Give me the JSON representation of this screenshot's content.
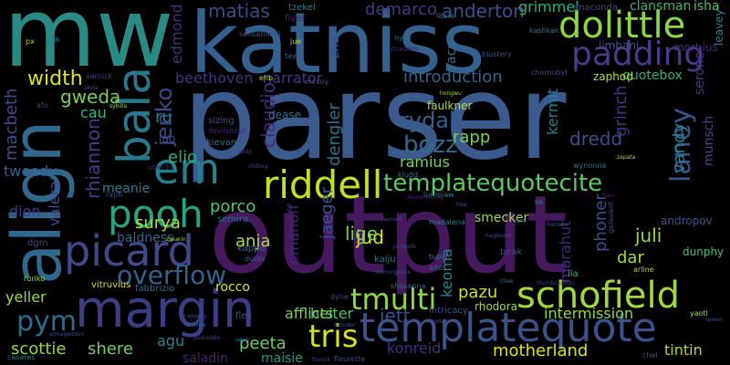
{
  "word_cloud": {
    "words": [
      {
        "text": "parser",
        "color": "#3b5a8e"
      },
      {
        "text": "output",
        "color": "#46185e"
      },
      {
        "text": "mw",
        "color": "#2a8a86"
      },
      {
        "text": "katniss",
        "color": "#34618d"
      },
      {
        "text": "align",
        "color": "#31688e"
      },
      {
        "text": "margin",
        "color": "#3b3e83"
      },
      {
        "text": "templatequote",
        "color": "#3a538b"
      },
      {
        "text": "picard",
        "color": "#3f4a8a"
      },
      {
        "text": "pooh",
        "color": "#29a283"
      },
      {
        "text": "schofield",
        "color": "#9fda3a"
      },
      {
        "text": "riddell",
        "color": "#c1df24"
      },
      {
        "text": "dolittle",
        "color": "#8bd546"
      },
      {
        "text": "padding",
        "color": "#4a3a88"
      },
      {
        "text": "em",
        "color": "#26818e"
      },
      {
        "text": "bala",
        "color": "#29798e"
      },
      {
        "text": "templatequotecite",
        "color": "#5cc863"
      },
      {
        "text": "overflow",
        "color": "#33628d"
      },
      {
        "text": "tmulti",
        "color": "#8fd744"
      },
      {
        "text": "tris",
        "color": "#d2e21b"
      },
      {
        "text": "pym",
        "color": "#2f6c8e"
      },
      {
        "text": "laney",
        "color": "#3a548c"
      },
      {
        "text": "bozz",
        "color": "#2f6b8e"
      },
      {
        "text": "rydal",
        "color": "#355f8d"
      },
      {
        "text": "introduction",
        "color": "#33638d"
      },
      {
        "text": "jenko",
        "color": "#3f4888"
      },
      {
        "text": "beethoven",
        "color": "#46337e"
      },
      {
        "text": "narrator",
        "color": "#43377f"
      },
      {
        "text": "anderton",
        "color": "#3d4e8a"
      },
      {
        "text": "demarco",
        "color": "#453882"
      },
      {
        "text": "matias",
        "color": "#3e4c8a"
      },
      {
        "text": "edmond",
        "color": "#472d7b"
      },
      {
        "text": "grimmel",
        "color": "#29af7f"
      },
      {
        "text": "width",
        "color": "#dde318"
      },
      {
        "text": "gweda",
        "color": "#7ad151"
      },
      {
        "text": "cau",
        "color": "#31b57b"
      },
      {
        "text": "macbeth",
        "color": "#3d4e8a"
      },
      {
        "text": "rhiannon",
        "color": "#433e85"
      },
      {
        "text": "elio",
        "color": "#28ae80"
      },
      {
        "text": "claudio",
        "color": "#482878"
      },
      {
        "text": "ru",
        "color": "#26828e"
      },
      {
        "text": "surya",
        "color": "#b5de2b"
      },
      {
        "text": "porco",
        "color": "#52c569"
      },
      {
        "text": "valera",
        "color": "#3e4a89"
      },
      {
        "text": "dion",
        "color": "#443983"
      },
      {
        "text": "tweedy",
        "color": "#355f8d"
      },
      {
        "text": "meanie",
        "color": "#277f8e"
      },
      {
        "text": "baldness",
        "color": "#31668e"
      },
      {
        "text": "yeller",
        "color": "#9dd93b"
      },
      {
        "text": "scottie",
        "color": "#90d743"
      },
      {
        "text": "shere",
        "color": "#6ece58"
      },
      {
        "text": "agu",
        "color": "#24868e"
      },
      {
        "text": "saladin",
        "color": "#482071"
      },
      {
        "text": "peeta",
        "color": "#6ccd5a"
      },
      {
        "text": "maisie",
        "color": "#1e9b8a"
      },
      {
        "text": "anja",
        "color": "#a5db36"
      },
      {
        "text": "jud",
        "color": "#dde318"
      },
      {
        "text": "lige",
        "color": "#7ad151"
      },
      {
        "text": "jaeger",
        "color": "#3b528b"
      },
      {
        "text": "omanoff",
        "color": "#482475"
      },
      {
        "text": "dengler",
        "color": "#2c728e"
      },
      {
        "text": "keoma",
        "color": "#25858e"
      },
      {
        "text": "pazu",
        "color": "#c8e020"
      },
      {
        "text": "jett",
        "color": "#3b528b"
      },
      {
        "text": "heiter",
        "color": "#4ac16d"
      },
      {
        "text": "konreid",
        "color": "#472e7c"
      },
      {
        "text": "motherland",
        "color": "#dde318"
      },
      {
        "text": "intermission",
        "color": "#8fd744"
      },
      {
        "text": "tintin",
        "color": "#a8db34"
      },
      {
        "text": "juli",
        "color": "#95d840"
      },
      {
        "text": "dar",
        "color": "#a8db34"
      },
      {
        "text": "phoner",
        "color": "#3c4f8a"
      },
      {
        "text": "marahut",
        "color": "#482979"
      },
      {
        "text": "dredd",
        "color": "#3d4d8a"
      },
      {
        "text": "vandy",
        "color": "#25848e"
      },
      {
        "text": "kermit",
        "color": "#287d8e"
      },
      {
        "text": "grinch",
        "color": "#45377f"
      },
      {
        "text": "rapp",
        "color": "#7ad151"
      },
      {
        "text": "ramius",
        "color": "#7ad151"
      },
      {
        "text": "smecker",
        "color": "#9fda3a"
      },
      {
        "text": "afflicts",
        "color": "#7ad151"
      },
      {
        "text": "rocco",
        "color": "#dde318"
      },
      {
        "text": "zha",
        "color": "#3d4e8a"
      },
      {
        "text": "acu",
        "color": "#2e6e8e"
      },
      {
        "text": "munsch",
        "color": "#3e4a89"
      },
      {
        "text": "serone",
        "color": "#433e85"
      },
      {
        "text": "quotebox",
        "color": "#29af7f"
      },
      {
        "text": "zaphod",
        "color": "#b5de2b"
      },
      {
        "text": "clansman",
        "color": "#35b779"
      },
      {
        "text": "isha",
        "color": "#4ac16d"
      },
      {
        "text": "anaconda",
        "color": "#3e4c8a"
      },
      {
        "text": "limbani",
        "color": "#3b528b"
      },
      {
        "text": "morbius",
        "color": "#482878"
      },
      {
        "text": "leavey",
        "color": "#277f8e"
      },
      {
        "text": "faulkner",
        "color": "#b5de2b"
      },
      {
        "text": "dease",
        "color": "#2a788e"
      },
      {
        "text": "dunphy",
        "color": "#3fbc73"
      },
      {
        "text": "andropov",
        "color": "#3b528b"
      },
      {
        "text": "luo",
        "color": "#3e4a89"
      },
      {
        "text": "kievan",
        "color": "#2a788e"
      },
      {
        "text": "semira",
        "color": "#2c728e"
      },
      {
        "text": "kappa",
        "color": "#31688e"
      },
      {
        "text": "vitruvius",
        "color": "#d8e219"
      },
      {
        "text": "fabbrizio",
        "color": "#2c728e"
      },
      {
        "text": "flex",
        "color": "#3b528b"
      },
      {
        "text": "rhodora",
        "color": "#a0da39"
      },
      {
        "text": "intricacy",
        "color": "#3b528b"
      },
      {
        "text": "tzekel",
        "color": "#26828e"
      },
      {
        "text": "fiver",
        "color": "#482878"
      },
      {
        "text": "nyra",
        "color": "#2c728e"
      },
      {
        "text": "madero",
        "color": "#482878"
      },
      {
        "text": "chernobyl",
        "color": "#3e4a89"
      },
      {
        "text": "blustery",
        "color": "#3b528b"
      },
      {
        "text": "libria",
        "color": "#2e6e8e"
      },
      {
        "text": "kashkak",
        "color": "#2a788e"
      },
      {
        "text": "sensational",
        "color": "#3b528b"
      },
      {
        "text": "jue",
        "color": "#b5de2b"
      },
      {
        "text": "tay",
        "color": "#31688e"
      },
      {
        "text": "px",
        "color": "#a5db36"
      },
      {
        "text": "flik",
        "color": "#2a788e"
      },
      {
        "text": "afo",
        "color": "#3e4a89"
      },
      {
        "text": "varnick",
        "color": "#3e4a89"
      },
      {
        "text": "akela",
        "color": "#3e4a89"
      },
      {
        "text": "sybilla",
        "color": "#a0da39"
      },
      {
        "text": "ehb",
        "color": "#b5de2b"
      },
      {
        "text": "mccoy",
        "color": "#3b528b"
      },
      {
        "text": "hongwu",
        "color": "#a0da39"
      },
      {
        "text": "sizing",
        "color": "#3b528b"
      },
      {
        "text": "devilshoof",
        "color": "#482878"
      },
      {
        "text": "khilji",
        "color": "#3b528b"
      },
      {
        "text": "chilling",
        "color": "#3e4a89"
      },
      {
        "text": "raph",
        "color": "#3b528b"
      },
      {
        "text": "oberlin",
        "color": "#482878"
      },
      {
        "text": "zakarin",
        "color": "#b5de2b"
      },
      {
        "text": "kludd",
        "color": "#2c728e"
      },
      {
        "text": "wynonna",
        "color": "#2a788e"
      },
      {
        "text": "zapata",
        "color": "#a0da39"
      },
      {
        "text": "lumpjaw",
        "color": "#2a788e"
      },
      {
        "text": "hua",
        "color": "#3b528b"
      },
      {
        "text": "ke",
        "color": "#2c728e"
      },
      {
        "text": "fynn",
        "color": "#482878"
      },
      {
        "text": "raynald",
        "color": "#3b528b"
      },
      {
        "text": "madalena",
        "color": "#2a788e"
      },
      {
        "text": "yaropolk",
        "color": "#3e4a89"
      },
      {
        "text": "deuteronomy",
        "color": "#482878"
      },
      {
        "text": "tubal",
        "color": "#26828e"
      },
      {
        "text": "ado",
        "color": "#2e6e8e"
      },
      {
        "text": "beak",
        "color": "#3e4a89"
      },
      {
        "text": "katsuro",
        "color": "#3b528b"
      },
      {
        "text": "ila",
        "color": "#35b779"
      },
      {
        "text": "arline",
        "color": "#a0da39"
      },
      {
        "text": "reemergence",
        "color": "#3e4a89"
      },
      {
        "text": "thumbcaption",
        "color": "#3e4a89"
      },
      {
        "text": "chee",
        "color": "#2a788e"
      },
      {
        "text": "durov",
        "color": "#2e6e8e"
      },
      {
        "text": "gita",
        "color": "#3b528b"
      },
      {
        "text": "galavant",
        "color": "#3e4a89"
      },
      {
        "text": "hagbeard",
        "color": "#3e4a89"
      },
      {
        "text": "kaiju",
        "color": "#2a788e"
      },
      {
        "text": "dyne",
        "color": "#3e4a89"
      },
      {
        "text": "raggedy",
        "color": "#3e4a89"
      },
      {
        "text": "farmiga",
        "color": "#2e6e8e"
      },
      {
        "text": "aqua",
        "color": "#2e6e8e"
      },
      {
        "text": "brooder",
        "color": "#3e4a89"
      },
      {
        "text": "landers",
        "color": "#3e4a89"
      },
      {
        "text": "yaotl",
        "color": "#a0da39"
      },
      {
        "text": "qiwen",
        "color": "#3e4a89"
      },
      {
        "text": "casares",
        "color": "#26828e"
      },
      {
        "text": "armageddon",
        "color": "#3e4a89"
      },
      {
        "text": "jalaluddin",
        "color": "#3e4a89"
      },
      {
        "text": "finnick",
        "color": "#3e4a89"
      },
      {
        "text": "fleurette",
        "color": "#3e4a89"
      },
      {
        "text": "chel",
        "color": "#3b528b"
      },
      {
        "text": "ruriko",
        "color": "#a0da39"
      },
      {
        "text": "dgm",
        "color": "#3e4a89"
      },
      {
        "text": "shosanna",
        "color": "#2e6e8e"
      }
    ]
  }
}
